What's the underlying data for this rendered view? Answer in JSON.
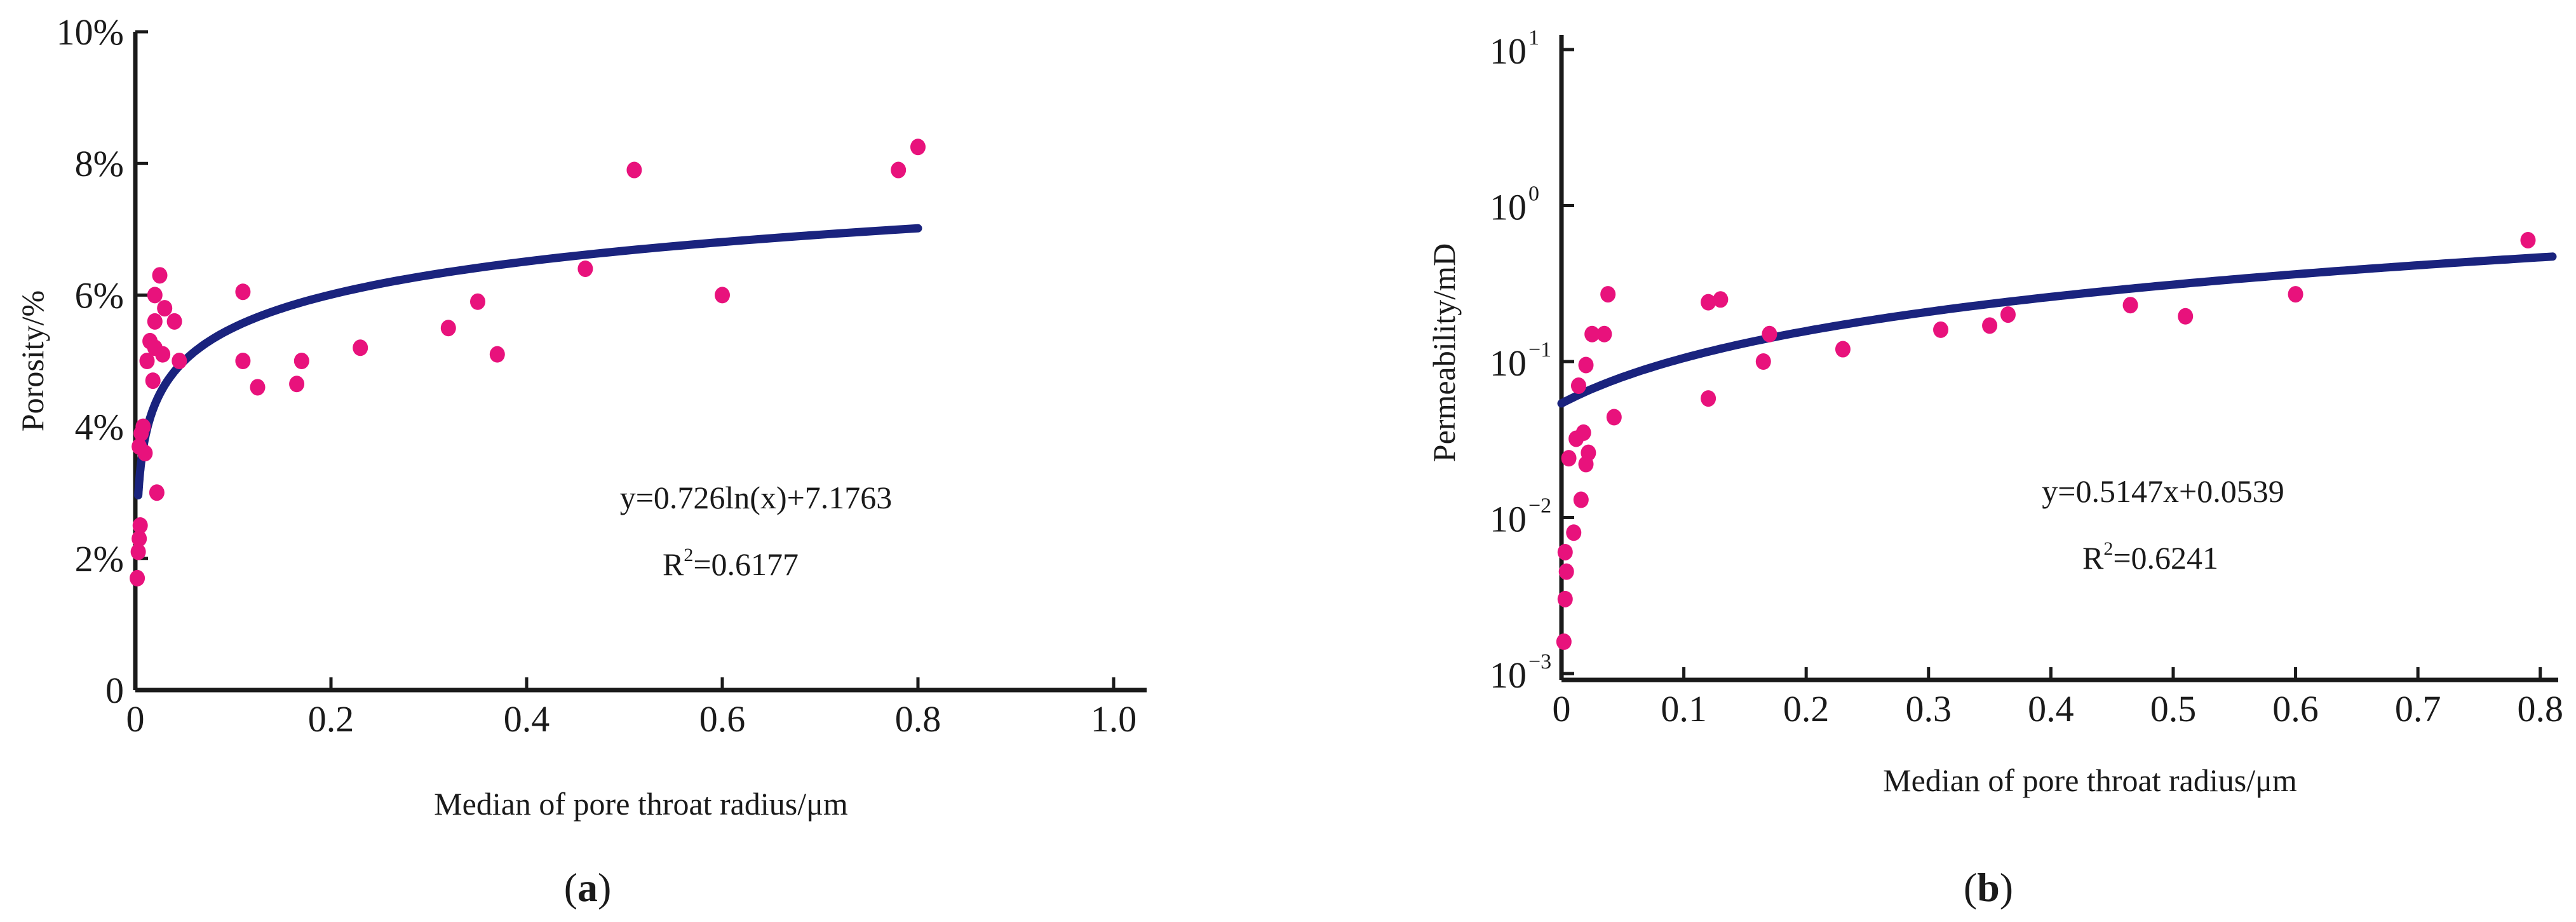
{
  "colors": {
    "point": "#e8127c",
    "fit": "#1a237e",
    "axis": "#1a1a1a"
  },
  "panel_labels": [
    {
      "open": "(",
      "letter": "a",
      "close": ")"
    },
    {
      "open": "(",
      "letter": "b",
      "close": ")"
    }
  ],
  "chart_data": [
    {
      "type": "scatter",
      "panel": "a",
      "xlabel": "Median of pore throat radius/μm",
      "ylabel": "Porosity/%",
      "xlim": [
        0,
        1.0
      ],
      "ylim": [
        0,
        10
      ],
      "x_ticks": [
        {
          "value": 0,
          "label": "0"
        },
        {
          "value": 0.2,
          "label": "0.2"
        },
        {
          "value": 0.4,
          "label": "0.4"
        },
        {
          "value": 0.6,
          "label": "0.6"
        },
        {
          "value": 0.8,
          "label": "0.8"
        },
        {
          "value": 1.0,
          "label": "1.0"
        }
      ],
      "y_ticks": [
        {
          "value": 0,
          "label": "0"
        },
        {
          "value": 2,
          "label": "2%"
        },
        {
          "value": 4,
          "label": "4%"
        },
        {
          "value": 6,
          "label": "6%"
        },
        {
          "value": 8,
          "label": "8%"
        },
        {
          "value": 10,
          "label": "10%"
        }
      ],
      "points": [
        [
          0.002,
          1.7
        ],
        [
          0.003,
          2.1
        ],
        [
          0.004,
          2.3
        ],
        [
          0.005,
          2.5
        ],
        [
          0.004,
          3.7
        ],
        [
          0.006,
          3.9
        ],
        [
          0.008,
          4.0
        ],
        [
          0.01,
          3.6
        ],
        [
          0.012,
          5.0
        ],
        [
          0.015,
          5.3
        ],
        [
          0.018,
          4.7
        ],
        [
          0.02,
          5.2
        ],
        [
          0.02,
          5.6
        ],
        [
          0.02,
          6.0
        ],
        [
          0.025,
          6.3
        ],
        [
          0.022,
          3.0
        ],
        [
          0.028,
          5.1
        ],
        [
          0.03,
          5.8
        ],
        [
          0.04,
          5.6
        ],
        [
          0.045,
          5.0
        ],
        [
          0.11,
          6.05
        ],
        [
          0.11,
          5.0
        ],
        [
          0.125,
          4.6
        ],
        [
          0.165,
          4.65
        ],
        [
          0.17,
          5.0
        ],
        [
          0.23,
          5.2
        ],
        [
          0.32,
          5.5
        ],
        [
          0.35,
          5.9
        ],
        [
          0.37,
          5.1
        ],
        [
          0.46,
          6.4
        ],
        [
          0.51,
          7.9
        ],
        [
          0.6,
          6.0
        ],
        [
          0.78,
          7.9
        ],
        [
          0.8,
          8.25
        ]
      ],
      "fit": {
        "model": "log",
        "a": 0.726,
        "b": 7.1763,
        "x_range": [
          0.003,
          0.8
        ],
        "equation_label": "y=0.726ln(x)+7.1763",
        "r2_label": {
          "prefix": "R",
          "sup": "2",
          "value": "=0.6177"
        }
      }
    },
    {
      "type": "scatter",
      "panel": "b",
      "xlabel": "Median of pore throat radius/μm",
      "ylabel": "Permeability/mD",
      "xlim": [
        0,
        0.81
      ],
      "ylim": [
        0.001,
        10
      ],
      "yscale": "log",
      "x_ticks": [
        {
          "value": 0,
          "label": "0"
        },
        {
          "value": 0.1,
          "label": "0.1"
        },
        {
          "value": 0.2,
          "label": "0.2"
        },
        {
          "value": 0.3,
          "label": "0.3"
        },
        {
          "value": 0.4,
          "label": "0.4"
        },
        {
          "value": 0.5,
          "label": "0.5"
        },
        {
          "value": 0.6,
          "label": "0.6"
        },
        {
          "value": 0.7,
          "label": "0.7"
        },
        {
          "value": 0.8,
          "label": "0.8"
        }
      ],
      "y_ticks": [
        {
          "exp": -3,
          "base": "10",
          "sup": "−3"
        },
        {
          "exp": -2,
          "base": "10",
          "sup": "−2"
        },
        {
          "exp": -1,
          "base": "10",
          "sup": "−1"
        },
        {
          "exp": 0,
          "base": "10",
          "sup": "0"
        },
        {
          "exp": 1,
          "base": "10",
          "sup": "1"
        }
      ],
      "points": [
        [
          0.002,
          0.0016
        ],
        [
          0.003,
          0.003
        ],
        [
          0.004,
          0.0045
        ],
        [
          0.003,
          0.006
        ],
        [
          0.006,
          0.024
        ],
        [
          0.01,
          0.008
        ],
        [
          0.012,
          0.032
        ],
        [
          0.014,
          0.07
        ],
        [
          0.016,
          0.013
        ],
        [
          0.018,
          0.035
        ],
        [
          0.02,
          0.022
        ],
        [
          0.022,
          0.026
        ],
        [
          0.02,
          0.095
        ],
        [
          0.025,
          0.15
        ],
        [
          0.035,
          0.15
        ],
        [
          0.038,
          0.27
        ],
        [
          0.043,
          0.044
        ],
        [
          0.12,
          0.058
        ],
        [
          0.12,
          0.24
        ],
        [
          0.13,
          0.25
        ],
        [
          0.165,
          0.1
        ],
        [
          0.17,
          0.15
        ],
        [
          0.23,
          0.12
        ],
        [
          0.31,
          0.16
        ],
        [
          0.35,
          0.17
        ],
        [
          0.365,
          0.2
        ],
        [
          0.465,
          0.23
        ],
        [
          0.51,
          0.195
        ],
        [
          0.6,
          0.27
        ],
        [
          0.79,
          0.6
        ]
      ],
      "fit": {
        "model": "linear",
        "a": 0.5147,
        "b": 0.0539,
        "x_range": [
          0,
          0.81
        ],
        "equation_label": "y=0.5147x+0.0539",
        "r2_label": {
          "prefix": "R",
          "sup": "2",
          "value": "=0.6241"
        }
      }
    }
  ]
}
